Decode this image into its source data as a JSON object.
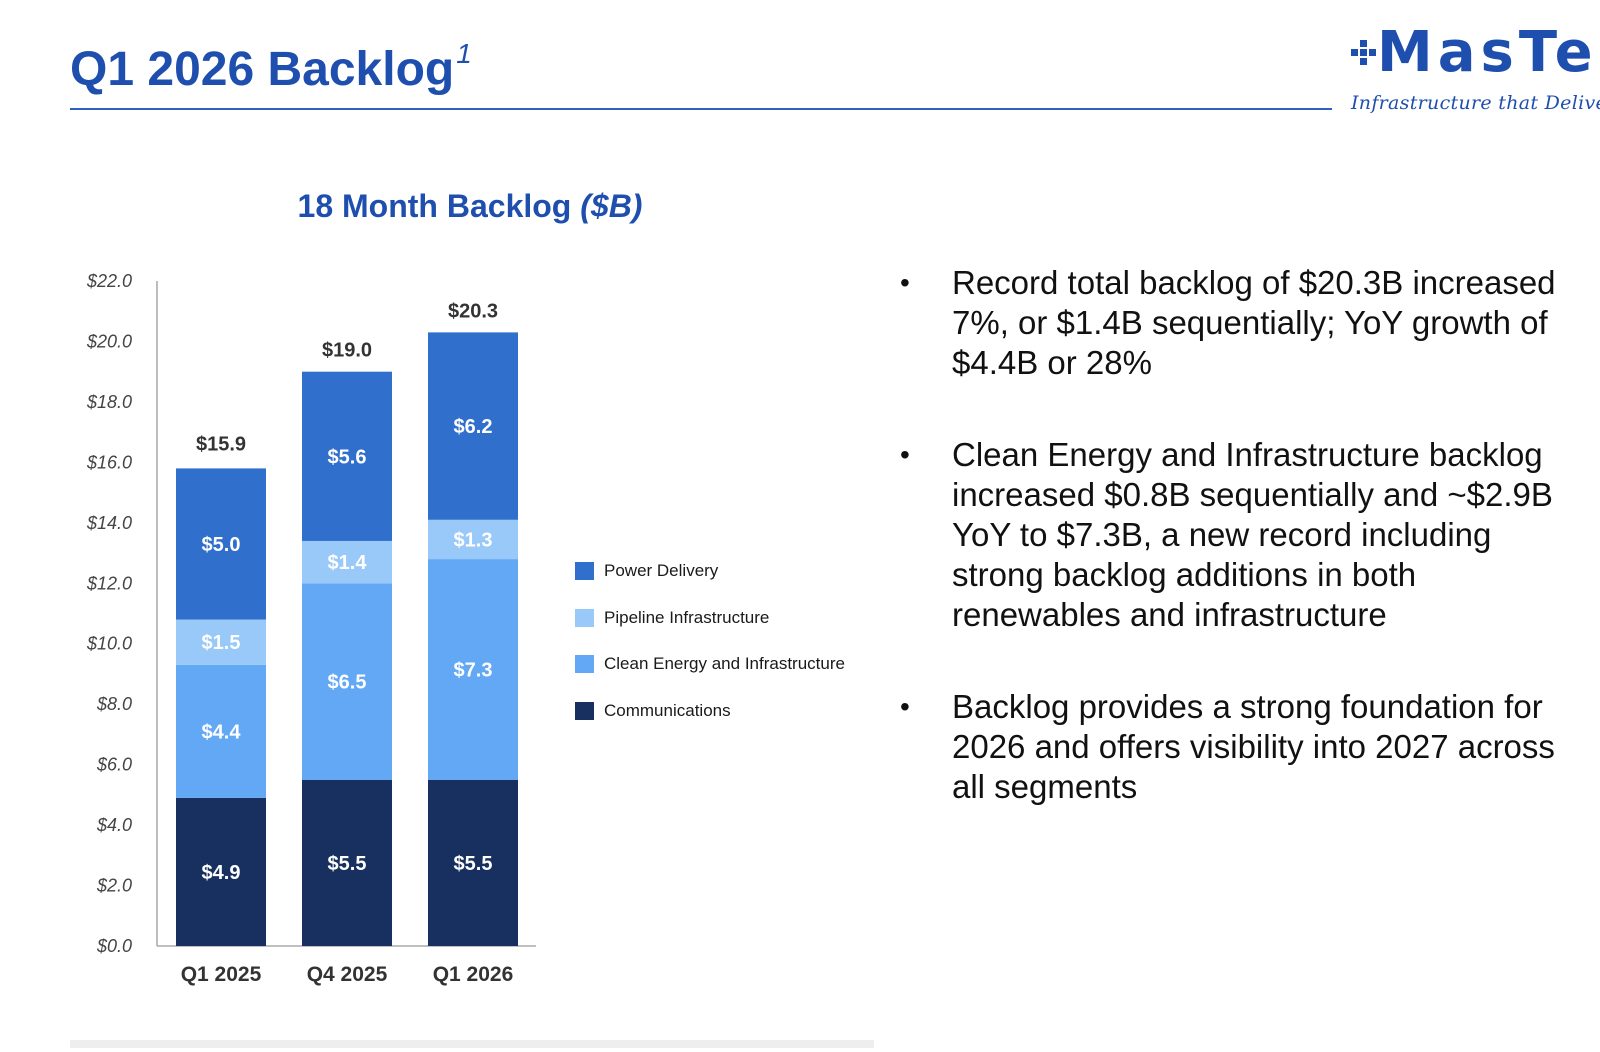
{
  "slide": {
    "title": "Q1 2026 Backlog",
    "title_footnote": "1"
  },
  "logo": {
    "wordmark": "MasTec",
    "tagline": "Infrastructure that Delivers",
    "icon": "checker-grid-icon"
  },
  "chart_title": {
    "main": "18 Month Backlog",
    "unit": "($B)"
  },
  "chart_data": {
    "type": "bar",
    "stacked": true,
    "title": "18 Month Backlog ($B)",
    "categories": [
      "Q1 2025",
      "Q4 2025",
      "Q1 2026"
    ],
    "series": [
      {
        "name": "Communications",
        "color": "#17305f",
        "values": [
          4.9,
          5.5,
          5.5
        ],
        "labels": [
          "$4.9",
          "$5.5",
          "$5.5"
        ]
      },
      {
        "name": "Clean Energy and Infrastructure",
        "color": "#62a8f5",
        "values": [
          4.4,
          6.5,
          7.3
        ],
        "labels": [
          "$4.4",
          "$6.5",
          "$7.3"
        ]
      },
      {
        "name": "Pipeline Infrastructure",
        "color": "#98c9f8",
        "values": [
          1.5,
          1.4,
          1.3
        ],
        "labels": [
          "$1.5",
          "$1.4",
          "$1.3"
        ]
      },
      {
        "name": "Power Delivery",
        "color": "#3070cc",
        "values": [
          5.0,
          5.6,
          6.2
        ],
        "labels": [
          "$5.0",
          "$5.6",
          "$6.2"
        ]
      }
    ],
    "totals": [
      15.9,
      19.0,
      20.3
    ],
    "total_labels": [
      "$15.9",
      "$19.0",
      "$20.3"
    ],
    "y_ticks": [
      0,
      2,
      4,
      6,
      8,
      10,
      12,
      14,
      16,
      18,
      20,
      22
    ],
    "y_tick_labels": [
      "$0.0",
      "$2.0",
      "$4.0",
      "$6.0",
      "$8.0",
      "$10.0",
      "$12.0",
      "$14.0",
      "$16.0",
      "$18.0",
      "$20.0",
      "$22.0"
    ],
    "ylim": [
      0,
      22
    ],
    "grid": false,
    "legend_position": "right"
  },
  "legend": [
    {
      "label": "Power Delivery",
      "color": "#3070cc"
    },
    {
      "label": "Pipeline Infrastructure",
      "color": "#98c9f8"
    },
    {
      "label": "Clean Energy and Infrastructure",
      "color": "#62a8f5"
    },
    {
      "label": "Communications",
      "color": "#17305f"
    }
  ],
  "bullets": [
    "Record total backlog of $20.3B increased 7%, or $1.4B sequentially; YoY growth of $4.4B or 28%",
    "Clean Energy and Infrastructure backlog increased $0.8B sequentially and ~$2.9B YoY to $7.3B, a new record including strong backlog additions in both renewables and infrastructure",
    "Backlog provides a strong foundation for 2026 and offers visibility into 2027 across all segments"
  ]
}
